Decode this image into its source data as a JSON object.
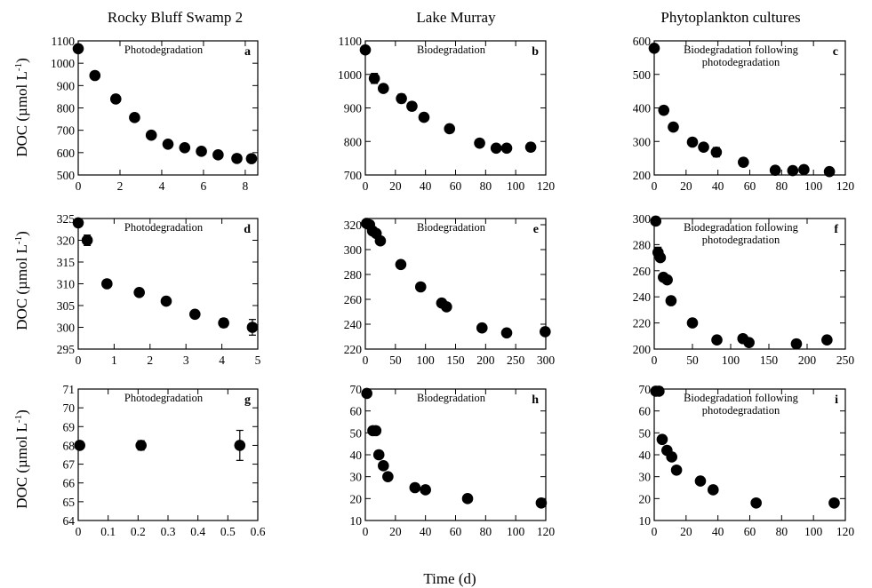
{
  "figure": {
    "column_titles": [
      "Rocky Bluff Swamp 2",
      "Lake Murray",
      "Phytoplankton cultures"
    ],
    "ylabel": "DOC (µmol L",
    "ylabel_sup": "-1",
    "ylabel_close": ")",
    "xlabel": "Time (d)"
  },
  "chart_data": [
    {
      "type": "scatter",
      "panel": "a",
      "title": [
        "Photodegradation"
      ],
      "xlim": [
        0,
        8.6
      ],
      "xticks": [
        0,
        2,
        4,
        6,
        8
      ],
      "ylim": [
        500,
        1100
      ],
      "yticks": [
        500,
        600,
        700,
        800,
        900,
        1000,
        1100
      ],
      "points": [
        {
          "x": 0,
          "y": 1065
        },
        {
          "x": 0.8,
          "y": 945
        },
        {
          "x": 1.8,
          "y": 840
        },
        {
          "x": 2.7,
          "y": 757
        },
        {
          "x": 3.5,
          "y": 678
        },
        {
          "x": 4.3,
          "y": 638
        },
        {
          "x": 5.1,
          "y": 622
        },
        {
          "x": 5.9,
          "y": 606
        },
        {
          "x": 6.7,
          "y": 590
        },
        {
          "x": 7.6,
          "y": 574
        },
        {
          "x": 8.3,
          "y": 573
        }
      ]
    },
    {
      "type": "scatter",
      "panel": "b",
      "title": [
        "Biodegradation"
      ],
      "xlim": [
        0,
        120
      ],
      "xticks": [
        0,
        20,
        40,
        60,
        80,
        100,
        120
      ],
      "ylim": [
        700,
        1100
      ],
      "yticks": [
        700,
        800,
        900,
        1000,
        1100
      ],
      "points": [
        {
          "x": 0,
          "y": 1073
        },
        {
          "x": 6,
          "y": 988,
          "err": 15
        },
        {
          "x": 12,
          "y": 958
        },
        {
          "x": 24,
          "y": 928,
          "err": 13
        },
        {
          "x": 31,
          "y": 905,
          "err": 12
        },
        {
          "x": 39,
          "y": 872
        },
        {
          "x": 56,
          "y": 838
        },
        {
          "x": 76,
          "y": 795
        },
        {
          "x": 87,
          "y": 780
        },
        {
          "x": 94,
          "y": 780
        },
        {
          "x": 110,
          "y": 783,
          "err": 12
        }
      ]
    },
    {
      "type": "scatter",
      "panel": "c",
      "title": [
        "Biodegradation following",
        "photodegradation"
      ],
      "xlim": [
        0,
        120
      ],
      "xticks": [
        0,
        20,
        40,
        60,
        80,
        100,
        120
      ],
      "ylim": [
        200,
        600
      ],
      "yticks": [
        200,
        300,
        400,
        500,
        600
      ],
      "points": [
        {
          "x": 0,
          "y": 578
        },
        {
          "x": 6,
          "y": 393,
          "err": 12
        },
        {
          "x": 12,
          "y": 343
        },
        {
          "x": 24,
          "y": 298,
          "err": 10
        },
        {
          "x": 31,
          "y": 283
        },
        {
          "x": 39,
          "y": 268,
          "err": 14
        },
        {
          "x": 56,
          "y": 238,
          "err": 12
        },
        {
          "x": 76,
          "y": 214
        },
        {
          "x": 87,
          "y": 213
        },
        {
          "x": 94,
          "y": 216
        },
        {
          "x": 110,
          "y": 210
        }
      ]
    },
    {
      "type": "scatter",
      "panel": "d",
      "title": [
        "Photodegradation"
      ],
      "xlim": [
        0,
        5
      ],
      "xticks": [
        0,
        1,
        2,
        3,
        4,
        5
      ],
      "ylim": [
        295,
        325
      ],
      "yticks": [
        295,
        300,
        305,
        310,
        315,
        320,
        325
      ],
      "points": [
        {
          "x": 0,
          "y": 324
        },
        {
          "x": 0.25,
          "y": 320,
          "err": 1.2
        },
        {
          "x": 0.8,
          "y": 310
        },
        {
          "x": 1.7,
          "y": 308
        },
        {
          "x": 2.45,
          "y": 306
        },
        {
          "x": 3.25,
          "y": 303
        },
        {
          "x": 4.05,
          "y": 301,
          "err": 1.0
        },
        {
          "x": 4.85,
          "y": 300,
          "err": 1.8
        }
      ]
    },
    {
      "type": "scatter",
      "panel": "e",
      "title": [
        "Biodegradation"
      ],
      "xlim": [
        0,
        300
      ],
      "xticks": [
        0,
        50,
        100,
        150,
        200,
        250,
        300
      ],
      "ylim": [
        220,
        325
      ],
      "yticks": [
        220,
        240,
        260,
        280,
        300,
        320
      ],
      "points": [
        {
          "x": 2,
          "y": 321
        },
        {
          "x": 7,
          "y": 320
        },
        {
          "x": 12,
          "y": 315
        },
        {
          "x": 18,
          "y": 313
        },
        {
          "x": 25,
          "y": 307
        },
        {
          "x": 59,
          "y": 288
        },
        {
          "x": 92,
          "y": 270
        },
        {
          "x": 127,
          "y": 257
        },
        {
          "x": 135,
          "y": 254
        },
        {
          "x": 194,
          "y": 237
        },
        {
          "x": 235,
          "y": 233
        },
        {
          "x": 299,
          "y": 234
        }
      ]
    },
    {
      "type": "scatter",
      "panel": "f",
      "title": [
        "Biodegradation following",
        "photodegradation"
      ],
      "xlim": [
        0,
        250
      ],
      "xticks": [
        0,
        50,
        100,
        150,
        200,
        250
      ],
      "ylim": [
        200,
        300
      ],
      "yticks": [
        200,
        220,
        240,
        260,
        280,
        300
      ],
      "points": [
        {
          "x": 2,
          "y": 298
        },
        {
          "x": 5,
          "y": 274,
          "err": 4
        },
        {
          "x": 8,
          "y": 270
        },
        {
          "x": 12,
          "y": 255
        },
        {
          "x": 17,
          "y": 253
        },
        {
          "x": 22,
          "y": 237
        },
        {
          "x": 50,
          "y": 220
        },
        {
          "x": 82,
          "y": 207
        },
        {
          "x": 116,
          "y": 208
        },
        {
          "x": 124,
          "y": 205
        },
        {
          "x": 186,
          "y": 204
        },
        {
          "x": 226,
          "y": 207
        }
      ]
    },
    {
      "type": "scatter",
      "panel": "g",
      "title": [
        "Photodegradation"
      ],
      "xlim": [
        0,
        0.6
      ],
      "xticks": [
        0,
        0.1,
        0.2,
        0.3,
        0.4,
        0.5,
        0.6
      ],
      "ylim": [
        64,
        71
      ],
      "yticks": [
        64,
        65,
        66,
        67,
        68,
        69,
        70,
        71
      ],
      "points": [
        {
          "x": 0.005,
          "y": 68
        },
        {
          "x": 0.21,
          "y": 68,
          "err": 0.25
        },
        {
          "x": 0.54,
          "y": 68,
          "err": 0.8
        }
      ]
    },
    {
      "type": "scatter",
      "panel": "h",
      "title": [
        "Biodegradation"
      ],
      "xlim": [
        0,
        120
      ],
      "xticks": [
        0,
        20,
        40,
        60,
        80,
        100,
        120
      ],
      "ylim": [
        10,
        70
      ],
      "yticks": [
        10,
        20,
        30,
        40,
        50,
        60,
        70
      ],
      "points": [
        {
          "x": 1,
          "y": 68
        },
        {
          "x": 5,
          "y": 51
        },
        {
          "x": 7,
          "y": 51
        },
        {
          "x": 9,
          "y": 40
        },
        {
          "x": 12,
          "y": 35
        },
        {
          "x": 15,
          "y": 30
        },
        {
          "x": 33,
          "y": 25
        },
        {
          "x": 40,
          "y": 24
        },
        {
          "x": 68,
          "y": 20
        },
        {
          "x": 117,
          "y": 18
        }
      ]
    },
    {
      "type": "scatter",
      "panel": "i",
      "title": [
        "Biodegradation following",
        "photodegradation"
      ],
      "xlim": [
        0,
        120
      ],
      "xticks": [
        0,
        20,
        40,
        60,
        80,
        100,
        120
      ],
      "ylim": [
        10,
        70
      ],
      "yticks": [
        10,
        20,
        30,
        40,
        50,
        60,
        70
      ],
      "points": [
        {
          "x": 1,
          "y": 69
        },
        {
          "x": 3,
          "y": 69
        },
        {
          "x": 5,
          "y": 47
        },
        {
          "x": 8,
          "y": 42
        },
        {
          "x": 11,
          "y": 39
        },
        {
          "x": 14,
          "y": 33
        },
        {
          "x": 29,
          "y": 28
        },
        {
          "x": 37,
          "y": 24
        },
        {
          "x": 64,
          "y": 18
        },
        {
          "x": 113,
          "y": 18
        }
      ]
    }
  ]
}
